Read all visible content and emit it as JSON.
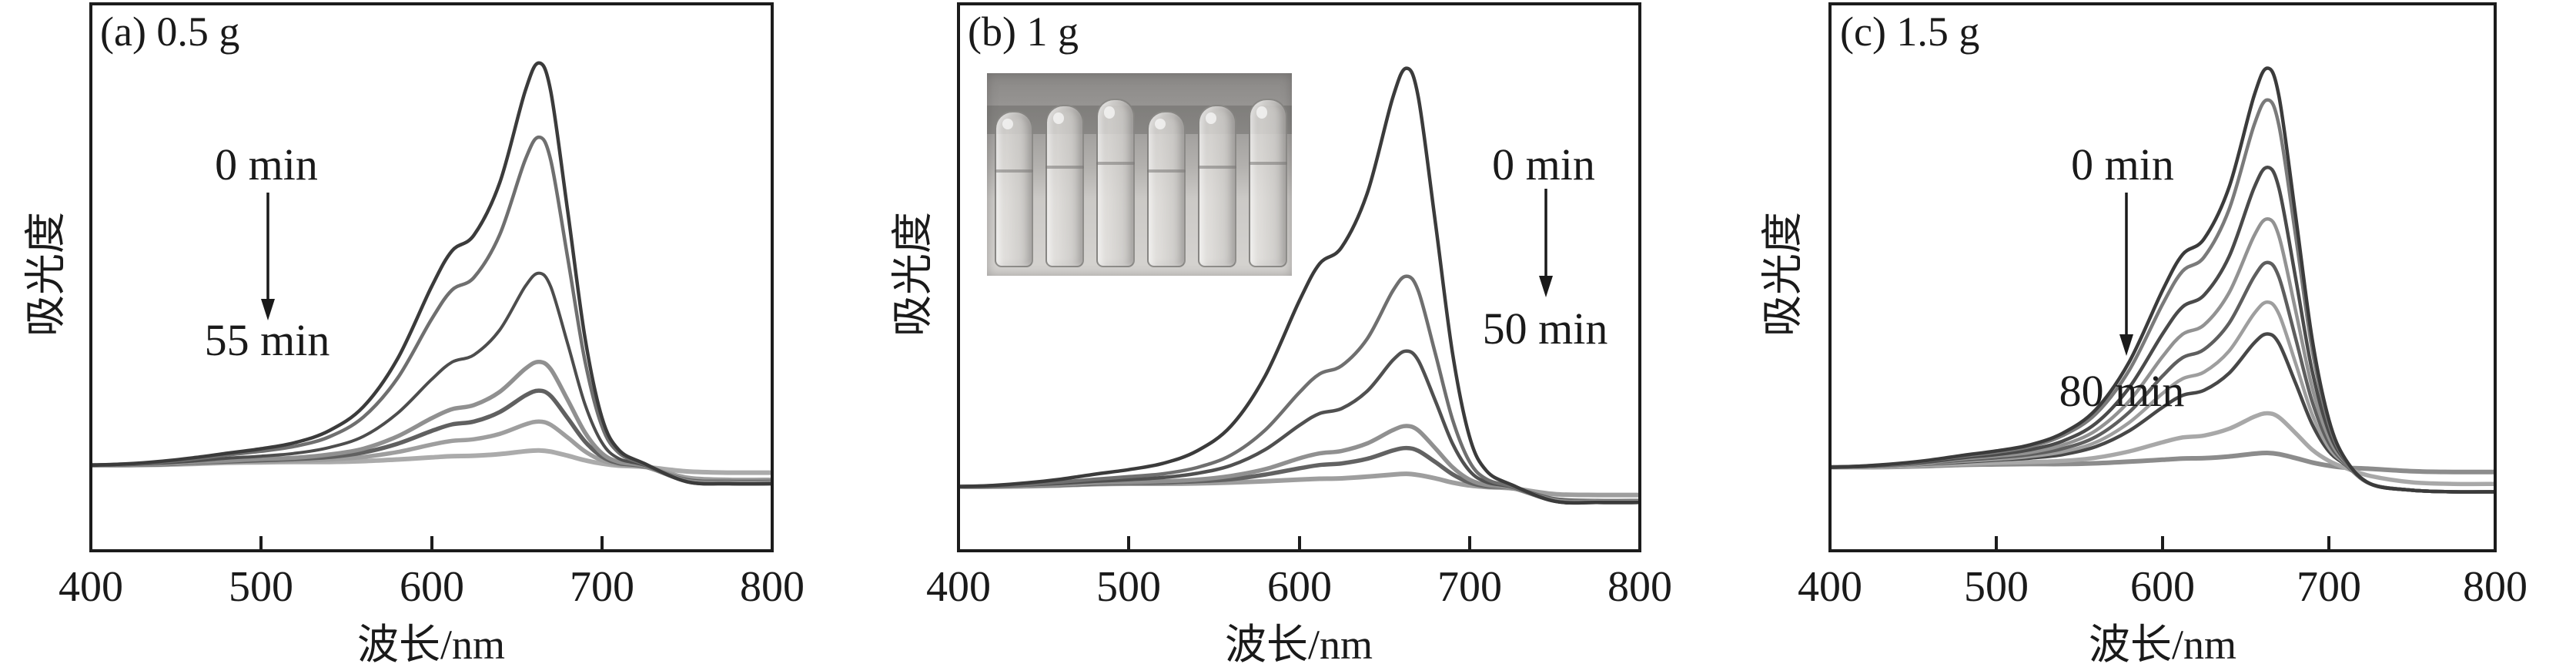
{
  "figure": {
    "background": "#ffffff",
    "axis_color": "#1c1c1c",
    "panels": [
      {
        "label": "(a) 0.5 g",
        "ylabel": "吸光度",
        "xlabel": "波长/nm",
        "x_ticks": [
          "400",
          "500",
          "600",
          "700",
          "800"
        ],
        "start_label": "0 min",
        "end_label": "55 min"
      },
      {
        "label": "(b) 1 g",
        "ylabel": "吸光度",
        "xlabel": "波长/nm",
        "x_ticks": [
          "400",
          "500",
          "600",
          "700",
          "800"
        ],
        "start_label": "0 min",
        "end_label": "50 min",
        "inset": {
          "type": "photo",
          "content": "test-tubes-with-solution",
          "tube_count": 6
        }
      },
      {
        "label": "(c) 1.5 g",
        "ylabel": "吸光度",
        "xlabel": "波长/nm",
        "x_ticks": [
          "400",
          "500",
          "600",
          "700",
          "800"
        ],
        "start_label": "0 min",
        "end_label": "80 min"
      }
    ]
  },
  "chart_data": [
    {
      "type": "line",
      "title": "(a) 0.5 g",
      "xlabel": "波长/nm",
      "ylabel": "吸光度",
      "xlim": [
        400,
        800
      ],
      "ylim": [
        -0.05,
        1.1
      ],
      "grid": false,
      "legend": "none",
      "annotations": [
        "0 min",
        "55 min"
      ],
      "x": [
        400,
        420,
        440,
        460,
        480,
        500,
        520,
        540,
        560,
        580,
        600,
        612,
        625,
        640,
        655,
        663,
        670,
        680,
        690,
        700,
        710,
        725,
        750,
        775,
        800
      ],
      "series": [
        {
          "label": "0 min",
          "color": "#3b3b3b",
          "width": 4.5,
          "y": [
            0.03,
            0.033,
            0.039,
            0.048,
            0.059,
            0.07,
            0.085,
            0.114,
            0.172,
            0.288,
            0.463,
            0.55,
            0.589,
            0.715,
            0.938,
            1.006,
            0.937,
            0.645,
            0.342,
            0.146,
            0.067,
            0.034,
            -0.01,
            -0.015,
            -0.015
          ]
        },
        {
          "label": "",
          "color": "#6f6f6f",
          "width": 4.5,
          "y": [
            0.03,
            0.032,
            0.037,
            0.045,
            0.055,
            0.064,
            0.076,
            0.099,
            0.147,
            0.241,
            0.384,
            0.455,
            0.486,
            0.589,
            0.771,
            0.826,
            0.77,
            0.532,
            0.285,
            0.125,
            0.06,
            0.032,
            -0.01,
            -0.015,
            -0.015
          ]
        },
        {
          "label": "",
          "color": "#4d4d4d",
          "width": 4,
          "y": [
            0.03,
            0.031,
            0.035,
            0.04,
            0.047,
            0.052,
            0.059,
            0.073,
            0.1,
            0.156,
            0.238,
            0.28,
            0.298,
            0.358,
            0.464,
            0.496,
            0.463,
            0.324,
            0.179,
            0.085,
            0.046,
            0.03,
            -0.01,
            -0.015,
            -0.015
          ]
        },
        {
          "label": "",
          "color": "#909090",
          "width": 5.5,
          "y": [
            0.03,
            0.031,
            0.033,
            0.037,
            0.041,
            0.045,
            0.048,
            0.056,
            0.07,
            0.1,
            0.144,
            0.166,
            0.176,
            0.208,
            0.264,
            0.281,
            0.263,
            0.188,
            0.11,
            0.059,
            0.038,
            0.028,
            -0.008,
            -0.012,
            -0.012
          ]
        },
        {
          "label": "",
          "color": "#606060",
          "width": 5.5,
          "y": [
            0.03,
            0.031,
            0.032,
            0.036,
            0.039,
            0.042,
            0.045,
            0.05,
            0.061,
            0.082,
            0.113,
            0.129,
            0.136,
            0.159,
            0.199,
            0.211,
            0.198,
            0.144,
            0.088,
            0.051,
            0.035,
            0.027,
            -0.006,
            -0.01,
            -0.01
          ]
        },
        {
          "label": "",
          "color": "#9e9e9e",
          "width": 5.5,
          "y": [
            0.03,
            0.03,
            0.032,
            0.035,
            0.038,
            0.04,
            0.041,
            0.044,
            0.05,
            0.062,
            0.08,
            0.089,
            0.093,
            0.106,
            0.129,
            0.136,
            0.128,
            0.097,
            0.064,
            0.042,
            0.032,
            0.027,
            0.0,
            -0.005,
            -0.005
          ]
        },
        {
          "label": "55 min",
          "color": "#ababab",
          "width": 6,
          "y": [
            0.03,
            0.03,
            0.031,
            0.033,
            0.036,
            0.037,
            0.038,
            0.038,
            0.04,
            0.044,
            0.049,
            0.052,
            0.053,
            0.057,
            0.064,
            0.066,
            0.063,
            0.053,
            0.042,
            0.034,
            0.029,
            0.026,
            0.015,
            0.012,
            0.012
          ]
        }
      ]
    },
    {
      "type": "line",
      "title": "(b) 1 g",
      "xlabel": "波长/nm",
      "ylabel": "吸光度",
      "xlim": [
        400,
        800
      ],
      "ylim": [
        -0.05,
        1.1
      ],
      "grid": false,
      "legend": "none",
      "annotations": [
        "0 min",
        "50 min"
      ],
      "x": [
        400,
        420,
        440,
        460,
        480,
        500,
        520,
        540,
        560,
        580,
        600,
        612,
        625,
        640,
        655,
        663,
        670,
        680,
        690,
        700,
        710,
        725,
        750,
        775,
        800
      ],
      "series": [
        {
          "label": "0 min",
          "color": "#3b3b3b",
          "width": 4.5,
          "y": [
            0.03,
            0.033,
            0.039,
            0.048,
            0.06,
            0.071,
            0.086,
            0.116,
            0.176,
            0.296,
            0.476,
            0.566,
            0.606,
            0.736,
            0.966,
            1.036,
            0.965,
            0.664,
            0.352,
            0.15,
            0.068,
            0.034,
            -0.005,
            -0.008,
            -0.008
          ]
        },
        {
          "label": "",
          "color": "#6f6f6f",
          "width": 4.5,
          "y": [
            0.03,
            0.032,
            0.035,
            0.041,
            0.048,
            0.054,
            0.061,
            0.076,
            0.106,
            0.166,
            0.256,
            0.301,
            0.321,
            0.386,
            0.501,
            0.536,
            0.5,
            0.349,
            0.192,
            0.09,
            0.048,
            0.03,
            -0.005,
            -0.008,
            -0.008
          ]
        },
        {
          "label": "",
          "color": "#505050",
          "width": 4.5,
          "y": [
            0.03,
            0.031,
            0.034,
            0.038,
            0.043,
            0.047,
            0.052,
            0.062,
            0.081,
            0.119,
            0.177,
            0.206,
            0.218,
            0.26,
            0.334,
            0.356,
            0.333,
            0.236,
            0.134,
            0.068,
            0.041,
            0.029,
            -0.005,
            -0.008,
            -0.008
          ]
        },
        {
          "label": "",
          "color": "#909090",
          "width": 5.5,
          "y": [
            0.03,
            0.03,
            0.032,
            0.035,
            0.039,
            0.041,
            0.043,
            0.047,
            0.056,
            0.072,
            0.098,
            0.11,
            0.116,
            0.134,
            0.166,
            0.176,
            0.165,
            0.122,
            0.077,
            0.047,
            0.034,
            0.027,
            -0.003,
            -0.006,
            -0.006
          ]
        },
        {
          "label": "",
          "color": "#626262",
          "width": 5.5,
          "y": [
            0.03,
            0.03,
            0.032,
            0.034,
            0.037,
            0.039,
            0.04,
            0.043,
            0.048,
            0.059,
            0.074,
            0.082,
            0.086,
            0.097,
            0.117,
            0.123,
            0.116,
            0.089,
            0.06,
            0.04,
            0.031,
            0.027,
            0.0,
            -0.004,
            -0.004
          ]
        },
        {
          "label": "50 min",
          "color": "#9e9e9e",
          "width": 6,
          "y": [
            0.03,
            0.03,
            0.031,
            0.033,
            0.036,
            0.037,
            0.037,
            0.038,
            0.04,
            0.043,
            0.047,
            0.049,
            0.05,
            0.054,
            0.059,
            0.061,
            0.058,
            0.05,
            0.04,
            0.033,
            0.029,
            0.026,
            0.012,
            0.01,
            0.01
          ]
        }
      ]
    },
    {
      "type": "line",
      "title": "(c) 1.5 g",
      "xlabel": "波长/nm",
      "ylabel": "吸光度",
      "xlim": [
        400,
        800
      ],
      "ylim": [
        -0.05,
        1.1
      ],
      "grid": false,
      "legend": "none",
      "annotations": [
        "0 min",
        "80 min"
      ],
      "x": [
        400,
        420,
        440,
        460,
        480,
        500,
        520,
        540,
        560,
        580,
        600,
        612,
        625,
        640,
        655,
        663,
        670,
        680,
        690,
        700,
        710,
        725,
        750,
        775,
        800
      ],
      "series": [
        {
          "label": "0 min",
          "color": "#3b3b3b",
          "width": 4.5,
          "y": [
            0.03,
            0.033,
            0.039,
            0.048,
            0.06,
            0.071,
            0.086,
            0.116,
            0.176,
            0.296,
            0.476,
            0.566,
            0.606,
            0.736,
            0.966,
            1.036,
            0.965,
            0.664,
            0.352,
            0.15,
            0.05,
            -0.012,
            -0.028,
            -0.032,
            -0.032
          ]
        },
        {
          "label": "",
          "color": "#7a7a7a",
          "width": 4.5,
          "y": [
            0.03,
            0.033,
            0.038,
            0.047,
            0.058,
            0.068,
            0.082,
            0.11,
            0.165,
            0.275,
            0.441,
            0.524,
            0.56,
            0.68,
            0.892,
            0.956,
            0.891,
            0.614,
            0.326,
            0.14,
            0.048,
            -0.012,
            -0.028,
            -0.032,
            -0.032
          ]
        },
        {
          "label": "",
          "color": "#4a4a4a",
          "width": 4.5,
          "y": [
            0.03,
            0.032,
            0.037,
            0.044,
            0.054,
            0.062,
            0.074,
            0.096,
            0.141,
            0.231,
            0.366,
            0.434,
            0.464,
            0.561,
            0.734,
            0.786,
            0.733,
            0.507,
            0.272,
            0.12,
            0.046,
            -0.012,
            -0.028,
            -0.032,
            -0.032
          ]
        },
        {
          "label": "",
          "color": "#929292",
          "width": 4.5,
          "y": [
            0.03,
            0.032,
            0.036,
            0.042,
            0.051,
            0.058,
            0.067,
            0.086,
            0.123,
            0.197,
            0.309,
            0.365,
            0.389,
            0.47,
            0.613,
            0.656,
            0.612,
            0.425,
            0.23,
            0.104,
            0.043,
            -0.012,
            -0.028,
            -0.032,
            -0.032
          ]
        },
        {
          "label": "",
          "color": "#5e5e5e",
          "width": 4.5,
          "y": [
            0.03,
            0.032,
            0.035,
            0.041,
            0.048,
            0.054,
            0.062,
            0.077,
            0.107,
            0.169,
            0.26,
            0.306,
            0.327,
            0.393,
            0.51,
            0.546,
            0.509,
            0.355,
            0.195,
            0.091,
            0.04,
            -0.012,
            -0.028,
            -0.032,
            -0.032
          ]
        },
        {
          "label": "",
          "color": "#9e9e9e",
          "width": 4.5,
          "y": [
            0.03,
            0.031,
            0.034,
            0.039,
            0.045,
            0.05,
            0.057,
            0.069,
            0.093,
            0.143,
            0.216,
            0.253,
            0.27,
            0.323,
            0.417,
            0.446,
            0.416,
            0.292,
            0.163,
            0.079,
            0.038,
            -0.012,
            -0.028,
            -0.032,
            -0.032
          ]
        },
        {
          "label": "",
          "color": "#474747",
          "width": 4.5,
          "y": [
            0.03,
            0.031,
            0.034,
            0.038,
            0.043,
            0.048,
            0.053,
            0.062,
            0.082,
            0.122,
            0.181,
            0.211,
            0.224,
            0.267,
            0.343,
            0.366,
            0.342,
            0.242,
            0.138,
            0.07,
            0.036,
            -0.012,
            -0.028,
            -0.032,
            -0.032
          ]
        },
        {
          "label": "",
          "color": "#a8a8a8",
          "width": 5.5,
          "y": [
            0.03,
            0.03,
            0.032,
            0.035,
            0.038,
            0.041,
            0.043,
            0.046,
            0.054,
            0.07,
            0.093,
            0.105,
            0.11,
            0.127,
            0.157,
            0.166,
            0.156,
            0.116,
            0.074,
            0.046,
            0.028,
            0.008,
            -0.008,
            -0.012,
            -0.012
          ]
        },
        {
          "label": "80 min",
          "color": "#8c8c8c",
          "width": 6,
          "y": [
            0.03,
            0.03,
            0.031,
            0.033,
            0.036,
            0.037,
            0.038,
            0.038,
            0.04,
            0.044,
            0.049,
            0.052,
            0.053,
            0.057,
            0.064,
            0.066,
            0.063,
            0.053,
            0.042,
            0.034,
            0.029,
            0.026,
            0.02,
            0.018,
            0.018
          ]
        }
      ]
    }
  ]
}
